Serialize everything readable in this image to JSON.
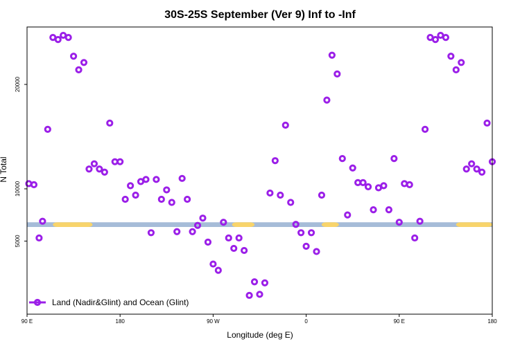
{
  "chart_data": {
    "type": "scatter",
    "title": "30S-25S September (Ver 9)   Inf to -Inf",
    "xlabel": "Longitude (deg E)",
    "ylabel": "N Total",
    "xlim": [
      -90,
      180
    ],
    "ylim": [
      -2000,
      25500
    ],
    "x_ticks": [
      {
        "value": -90,
        "label": "90 E"
      },
      {
        "value": -36,
        "label": "180"
      },
      {
        "value": 18,
        "label": "90 W"
      },
      {
        "value": 72,
        "label": "0"
      },
      {
        "value": 126,
        "label": "90 E"
      },
      {
        "value": 180,
        "label": "180"
      }
    ],
    "y_ticks": [
      {
        "value": 5000,
        "label": "5000"
      },
      {
        "value": 10000,
        "label": "10000"
      },
      {
        "value": 20000,
        "label": "20000"
      }
    ],
    "grid": false,
    "legend_position": "bottom-left",
    "band": {
      "y_range": [
        6350,
        6800
      ],
      "base_color": "#a6bcd8",
      "highlight_color": "#f8d46b",
      "highlight_x_ranges": [
        [
          -75,
          -52
        ],
        [
          29,
          42
        ],
        [
          81,
          91
        ],
        [
          159,
          182
        ]
      ]
    },
    "series": [
      {
        "name": "Land (Nadir&Glint) and Ocean (Glint)",
        "color": "#9b1fe8",
        "marker": "open-circle",
        "x": [
          -89,
          -86,
          -83,
          -81,
          -78,
          -75,
          -72,
          -69,
          -66,
          -63,
          -60,
          -57,
          -54,
          -51,
          -48,
          -45,
          -42,
          -39,
          -36,
          -33,
          -30,
          -27,
          -24,
          -21,
          -18,
          -15,
          -12,
          -9,
          -6,
          -3,
          0,
          3,
          6,
          9,
          12,
          15,
          18,
          21,
          24,
          27,
          30,
          33,
          36,
          39,
          42,
          45,
          48,
          51,
          54,
          57,
          60,
          63,
          66,
          69,
          72,
          75,
          78,
          81,
          84,
          87,
          90,
          93,
          96,
          99,
          102,
          105,
          108,
          111,
          114,
          117,
          120,
          123,
          126,
          129,
          132,
          135,
          138,
          141,
          144,
          147,
          150,
          153,
          156,
          159,
          162,
          165,
          168,
          171,
          174,
          177,
          180
        ],
        "y": [
          10500,
          10400,
          5300,
          6900,
          15700,
          24500,
          24300,
          24700,
          24500,
          22700,
          21400,
          22100,
          11900,
          12400,
          11900,
          11600,
          16300,
          12600,
          12600,
          9000,
          10300,
          9400,
          10700,
          10900,
          5800,
          10900,
          9000,
          9900,
          8700,
          5900,
          11000,
          9000,
          5900,
          6500,
          7200,
          4900,
          2800,
          2200,
          6800,
          5300,
          4300,
          5300,
          4100,
          -200,
          1100,
          -100,
          1000,
          9600,
          12700,
          9400,
          16100,
          8700,
          6600,
          5800,
          4500,
          5800,
          4000,
          9400,
          18500,
          22800,
          21000,
          12900,
          7500,
          12000,
          10600,
          10600,
          10200,
          8000,
          10100,
          10300,
          8000,
          12900,
          6800,
          10500,
          10400,
          5300,
          6900,
          15700,
          24500,
          24300,
          24700,
          24500,
          22700,
          21400,
          22100,
          11900,
          12400,
          11900,
          11600,
          16300,
          12600
        ]
      }
    ]
  }
}
